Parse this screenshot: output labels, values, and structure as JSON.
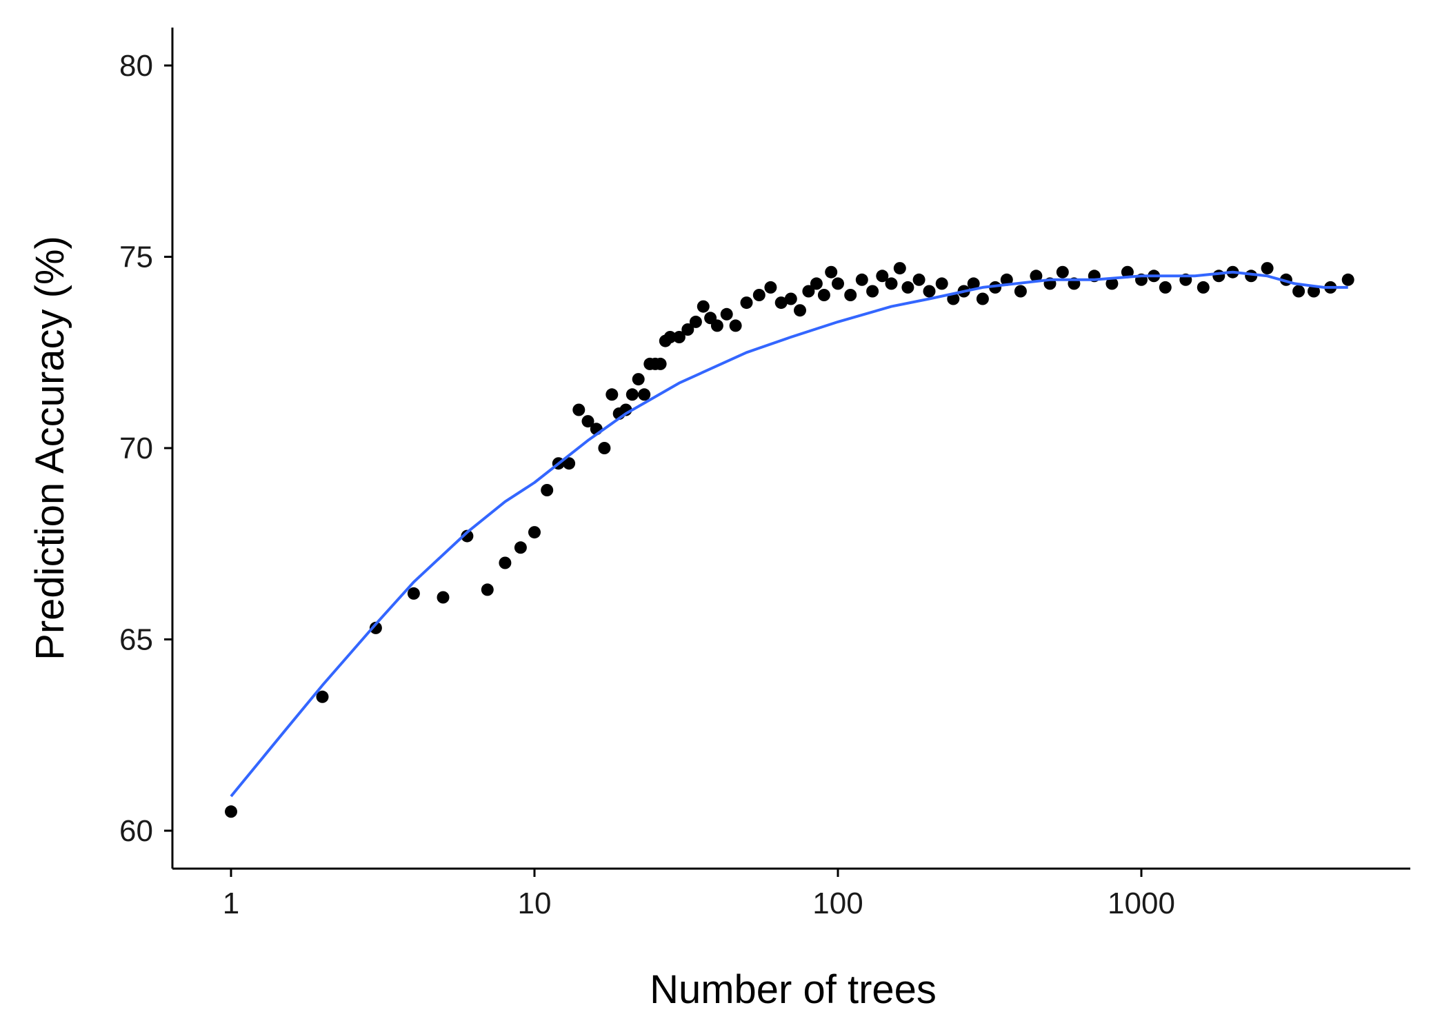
{
  "chart_data": {
    "type": "scatter",
    "title": "",
    "xlabel": "Number of trees",
    "ylabel": "Prediction Accuracy (%)",
    "x_scale": "log10",
    "xlim": [
      1,
      5000
    ],
    "ylim": [
      59.0,
      81.0
    ],
    "x_ticks": [
      1,
      10,
      100,
      1000
    ],
    "x_tick_labels": [
      "1",
      "10",
      "100",
      "1000"
    ],
    "y_ticks": [
      60,
      65,
      70,
      75,
      80
    ],
    "y_tick_labels": [
      "60",
      "65",
      "70",
      "75",
      "80"
    ],
    "grid": false,
    "legend": "none",
    "series": [
      {
        "kind": "points",
        "color": "#000000",
        "points": [
          [
            1,
            60.5
          ],
          [
            2,
            63.5
          ],
          [
            3,
            65.3
          ],
          [
            4,
            66.2
          ],
          [
            5,
            66.1
          ],
          [
            6,
            67.7
          ],
          [
            7,
            66.3
          ],
          [
            8,
            67.0
          ],
          [
            9,
            67.4
          ],
          [
            10,
            67.8
          ],
          [
            11,
            68.9
          ],
          [
            12,
            69.6
          ],
          [
            13,
            69.6
          ],
          [
            14,
            71.0
          ],
          [
            15,
            70.7
          ],
          [
            16,
            70.5
          ],
          [
            17,
            70.0
          ],
          [
            18,
            71.4
          ],
          [
            19,
            70.9
          ],
          [
            20,
            71.0
          ],
          [
            21,
            71.4
          ],
          [
            22,
            71.8
          ],
          [
            23,
            71.4
          ],
          [
            24,
            72.2
          ],
          [
            25,
            72.2
          ],
          [
            26,
            72.2
          ],
          [
            27,
            72.8
          ],
          [
            28,
            72.9
          ],
          [
            30,
            72.9
          ],
          [
            32,
            73.1
          ],
          [
            34,
            73.3
          ],
          [
            36,
            73.7
          ],
          [
            38,
            73.4
          ],
          [
            40,
            73.2
          ],
          [
            43,
            73.5
          ],
          [
            46,
            73.2
          ],
          [
            50,
            73.8
          ],
          [
            55,
            74.0
          ],
          [
            60,
            74.2
          ],
          [
            65,
            73.8
          ],
          [
            70,
            73.9
          ],
          [
            75,
            73.6
          ],
          [
            80,
            74.1
          ],
          [
            85,
            74.3
          ],
          [
            90,
            74.0
          ],
          [
            95,
            74.6
          ],
          [
            100,
            74.3
          ],
          [
            110,
            74.0
          ],
          [
            120,
            74.4
          ],
          [
            130,
            74.1
          ],
          [
            140,
            74.5
          ],
          [
            150,
            74.3
          ],
          [
            160,
            74.7
          ],
          [
            170,
            74.2
          ],
          [
            185,
            74.4
          ],
          [
            200,
            74.1
          ],
          [
            220,
            74.3
          ],
          [
            240,
            73.9
          ],
          [
            260,
            74.1
          ],
          [
            280,
            74.3
          ],
          [
            300,
            73.9
          ],
          [
            330,
            74.2
          ],
          [
            360,
            74.4
          ],
          [
            400,
            74.1
          ],
          [
            450,
            74.5
          ],
          [
            500,
            74.3
          ],
          [
            550,
            74.6
          ],
          [
            600,
            74.3
          ],
          [
            700,
            74.5
          ],
          [
            800,
            74.3
          ],
          [
            900,
            74.6
          ],
          [
            1000,
            74.4
          ],
          [
            1100,
            74.5
          ],
          [
            1200,
            74.2
          ],
          [
            1400,
            74.4
          ],
          [
            1600,
            74.2
          ],
          [
            1800,
            74.5
          ],
          [
            2000,
            74.6
          ],
          [
            2300,
            74.5
          ],
          [
            2600,
            74.7
          ],
          [
            3000,
            74.4
          ],
          [
            3300,
            74.1
          ],
          [
            3700,
            74.1
          ],
          [
            4200,
            74.2
          ],
          [
            4800,
            74.4
          ]
        ]
      },
      {
        "kind": "line",
        "color": "#3366ff",
        "points": [
          [
            1,
            60.9
          ],
          [
            1.5,
            62.6
          ],
          [
            2,
            63.8
          ],
          [
            3,
            65.4
          ],
          [
            4,
            66.5
          ],
          [
            6,
            67.8
          ],
          [
            8,
            68.6
          ],
          [
            10,
            69.1
          ],
          [
            15,
            70.2
          ],
          [
            20,
            70.9
          ],
          [
            30,
            71.7
          ],
          [
            50,
            72.5
          ],
          [
            70,
            72.9
          ],
          [
            100,
            73.3
          ],
          [
            150,
            73.7
          ],
          [
            200,
            73.9
          ],
          [
            300,
            74.2
          ],
          [
            500,
            74.4
          ],
          [
            700,
            74.4
          ],
          [
            1000,
            74.5
          ],
          [
            1500,
            74.5
          ],
          [
            2000,
            74.6
          ],
          [
            2600,
            74.5
          ],
          [
            3200,
            74.3
          ],
          [
            4000,
            74.2
          ],
          [
            4800,
            74.2
          ]
        ]
      }
    ]
  }
}
